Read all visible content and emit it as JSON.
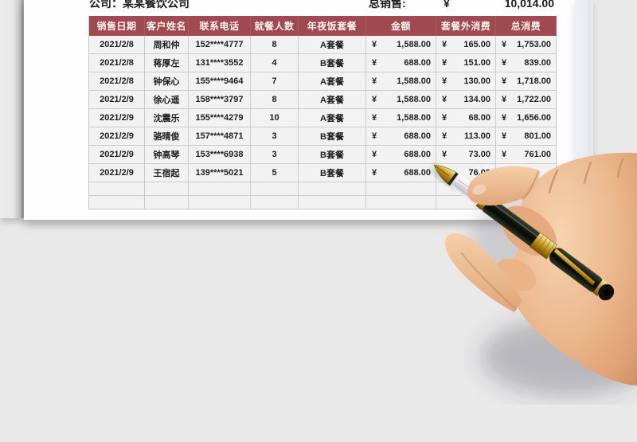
{
  "page": {
    "company_line": "公司：某某餐饮公司",
    "total_sales_label": "总销售:",
    "currency_symbol": "¥",
    "total_sales_value": "10,014.00"
  },
  "table": {
    "headers": [
      "销售日期",
      "客户姓名",
      "联系电话",
      "就餐人数",
      "年夜饭套餐",
      "金额",
      "套餐外消费",
      "总消费"
    ],
    "currency_symbol": "¥",
    "rows": [
      {
        "date": "2021/2/8",
        "name": "周和仲",
        "phone": "152****4777",
        "diners": "8",
        "package": "A套餐",
        "amount": "1,588.00",
        "extra": "165.00",
        "total": "1,753.00"
      },
      {
        "date": "2021/2/8",
        "name": "蒋厚左",
        "phone": "131****3552",
        "diners": "4",
        "package": "B套餐",
        "amount": "688.00",
        "extra": "151.00",
        "total": "839.00"
      },
      {
        "date": "2021/2/8",
        "name": "钟保心",
        "phone": "155****9464",
        "diners": "7",
        "package": "A套餐",
        "amount": "1,588.00",
        "extra": "130.00",
        "total": "1,718.00"
      },
      {
        "date": "2021/2/9",
        "name": "徐心遥",
        "phone": "158****3797",
        "diners": "8",
        "package": "A套餐",
        "amount": "1,588.00",
        "extra": "134.00",
        "total": "1,722.00"
      },
      {
        "date": "2021/2/9",
        "name": "沈震乐",
        "phone": "155****4279",
        "diners": "10",
        "package": "A套餐",
        "amount": "1,588.00",
        "extra": "68.00",
        "total": "1,656.00"
      },
      {
        "date": "2021/2/9",
        "name": "骆晴俊",
        "phone": "157****4871",
        "diners": "3",
        "package": "B套餐",
        "amount": "688.00",
        "extra": "113.00",
        "total": "801.00"
      },
      {
        "date": "2021/2/9",
        "name": "钟高琴",
        "phone": "153****6938",
        "diners": "3",
        "package": "B套餐",
        "amount": "688.00",
        "extra": "73.00",
        "total": "761.00"
      },
      {
        "date": "2021/2/9",
        "name": "王宿起",
        "phone": "139****5021",
        "diners": "5",
        "package": "B套餐",
        "amount": "688.00",
        "extra": "76.00",
        "total": ""
      }
    ],
    "empty_row_count": 2
  },
  "colors": {
    "header_bg": "#9e4a50",
    "header_text": "#fcf0f0",
    "cell_bg": "#f2f2f2",
    "cell_border": "#cbcbcb",
    "page_bg": "#e9e9ea",
    "sheet_bg": "#fdfdfe",
    "text": "#1f1f1f"
  },
  "decor": {
    "illustration": "right-hand-holding-fountain-pen",
    "pen_colors": {
      "barrel": "#11160d",
      "trim": "#d4a437",
      "grip": "#ededef"
    }
  }
}
